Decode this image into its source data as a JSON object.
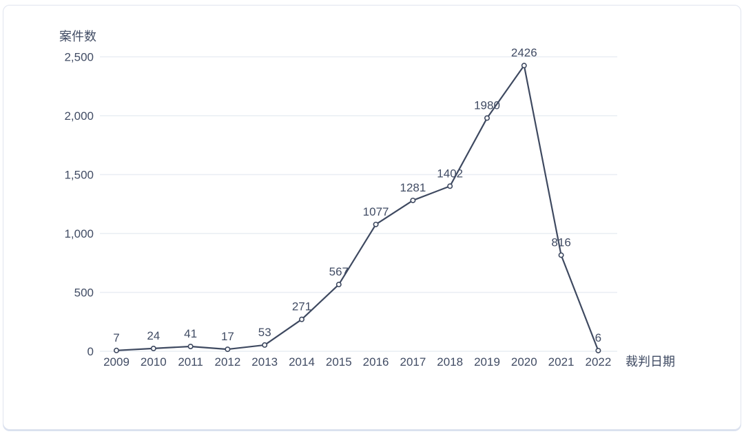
{
  "chart_data": {
    "type": "line",
    "title": "",
    "ylabel": "案件数",
    "xlabel": "裁判日期",
    "categories": [
      "2009",
      "2010",
      "2011",
      "2012",
      "2013",
      "2014",
      "2015",
      "2016",
      "2017",
      "2018",
      "2019",
      "2020",
      "2021",
      "2022"
    ],
    "values": [
      7,
      24,
      41,
      17,
      53,
      271,
      567,
      1077,
      1281,
      1402,
      1980,
      2426,
      816,
      6
    ],
    "point_labels": [
      "7",
      "24",
      "41",
      "17",
      "53",
      "271",
      "567",
      "1077",
      "1281",
      "1402",
      "1980",
      "2426",
      "816",
      "6"
    ],
    "ylim": [
      0,
      2500
    ],
    "yticks": [
      0,
      500,
      1000,
      1500,
      2000,
      2500
    ],
    "ytick_labels": [
      "0",
      "500",
      "1,000",
      "1,500",
      "2,000",
      "2,500"
    ],
    "grid": true,
    "legend_position": "none",
    "line_color": "#3e4960",
    "marker": "open-circle",
    "marker_fill": "#ffffff",
    "grid_color": "#e9edf4",
    "text_color": "#414c64",
    "card_border_color": "#dfe4ef",
    "background": "#ffffff"
  }
}
